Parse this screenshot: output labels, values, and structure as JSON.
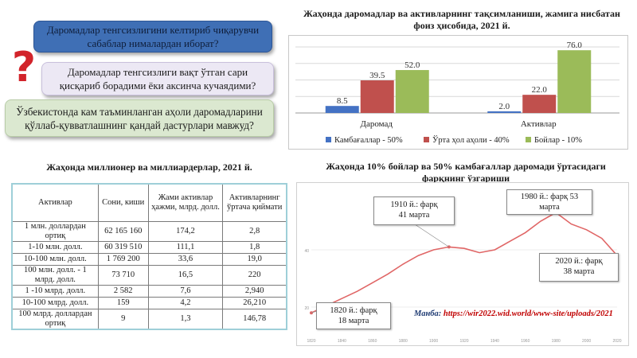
{
  "questions": {
    "q1": "Даромадлар тенгсизлигини келтириб чиқарувчи сабаблар нималардан иборат?",
    "q2": "Даромадлар тенгсизлиги вақт ўтган сари қисқариб борадими ёки аксинча кучаядими?",
    "q3": "Ўзбекистонда кам таъминланган аҳоли даромадларини қўллаб-қувватлашнинг қандай дастурлари мавжуд?",
    "mark": "?"
  },
  "bar_chart_title": "Жаҳонда даромадлар ва активларнинг тақсимланиши, жамига нисбатан фоиз ҳисобида, 2021 й.",
  "table_title": "Жаҳонда миллионер ва миллиардерлар, 2021 й.",
  "line_chart_title": "Жаҳонда 10% бойлар ва 50% камбағаллар даромади ўртасидаги фарқнинг ўзгариши",
  "table": {
    "headers": [
      "Активлар",
      "Сони, киши",
      "Жами активлар ҳажми, млрд. долл.",
      "Активларнинг ўртача қиймати"
    ],
    "rows": [
      [
        "1 млн. доллардан ортиқ",
        "62 165 160",
        "174,2",
        "2,8"
      ],
      [
        "1-10 млн. долл.",
        "60 319 510",
        "111,1",
        "1,8"
      ],
      [
        "10-100 млн. долл.",
        "1 769 200",
        "33,6",
        "19,0"
      ],
      [
        "100 млн. долл. - 1 млрд. долл.",
        "73 710",
        "16,5",
        "220"
      ],
      [
        "1 -10 млрд. долл.",
        "2 582",
        "7,6",
        "2,940"
      ],
      [
        "10-100 млрд. долл.",
        "159",
        "4,2",
        "26,210"
      ],
      [
        "100 млрд. доллардан ортиқ",
        "9",
        "1,3",
        "146,78"
      ]
    ]
  },
  "callouts": {
    "c1910": [
      "1910 й.: фарқ",
      "41 марта"
    ],
    "c1980": [
      "1980 й.: фарқ 53",
      "марта"
    ],
    "c2020": [
      "2020 й.: фарқ",
      "38 марта"
    ],
    "c1820": [
      "1820 й.: фарқ",
      "18 марта"
    ]
  },
  "source": {
    "label": "Манба:",
    "url": "https://wir2022.wid.world/www-site/uploads/2021"
  },
  "colors": {
    "blue": "#4472c4",
    "red": "#c0504d",
    "green": "#9bbb59",
    "line": "#e06666"
  },
  "chart_data": [
    {
      "type": "bar",
      "categories": [
        "Даромад",
        "Активлар"
      ],
      "series": [
        {
          "name": "Камбағаллар - 50%",
          "values": [
            8.5,
            2.0
          ]
        },
        {
          "name": "Ўрта ҳол аҳоли - 40%",
          "values": [
            39.5,
            22.0
          ]
        },
        {
          "name": "Бойлар - 10%",
          "values": [
            52.0,
            76.0
          ]
        }
      ],
      "ylim": [
        0,
        80
      ],
      "grid": true,
      "legend": "bottom"
    },
    {
      "type": "line",
      "x": [
        1820,
        1830,
        1840,
        1850,
        1860,
        1870,
        1880,
        1890,
        1900,
        1910,
        1920,
        1930,
        1940,
        1950,
        1960,
        1970,
        1980,
        1990,
        2000,
        2010,
        2020
      ],
      "values": [
        18,
        20.5,
        23,
        25.5,
        28.5,
        31.5,
        35,
        38,
        40,
        41,
        40.5,
        39,
        40,
        43,
        46,
        50,
        53,
        49,
        47,
        44,
        38
      ],
      "ylim": [
        10,
        60
      ],
      "yticks": [
        20,
        40
      ],
      "xticks": [
        1820,
        1840,
        1860,
        1880,
        1900,
        1920,
        1940,
        1960,
        1980,
        2000,
        2020
      ]
    }
  ]
}
